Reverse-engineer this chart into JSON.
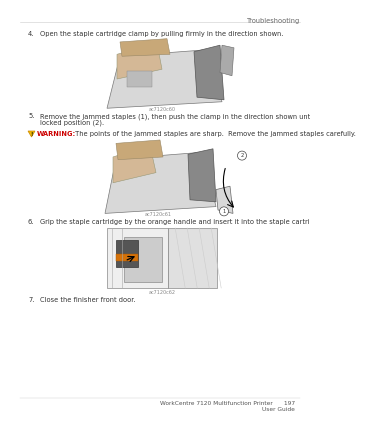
{
  "bg_color": "#ffffff",
  "header_text": "Troubleshooting",
  "header_fontsize": 4.8,
  "header_color": "#666666",
  "footer_line1": "WorkCentre 7120 Multifunction Printer      197",
  "footer_line2": "User Guide",
  "footer_fontsize": 4.2,
  "footer_color": "#555555",
  "step4_num": "4.",
  "step4_text": "Open the staple cartridge clamp by pulling firmly in the direction shown.",
  "step5_num": "5.",
  "step5_text_line1": "Remove the jammed staples (1), then push the clamp in the direction shown until it snaps into the",
  "step5_text_line2": "locked position (2).",
  "warning_label": "WARNING:",
  "warning_text": " The points of the jammed staples are sharp.  Remove the jammed staples carefully.",
  "step6_num": "6.",
  "step6_text": "Grip the staple cartridge by the orange handle and insert it into the staple cartridge unit until it clicks.",
  "step7_num": "7.",
  "step7_text": "Close the finisher front door.",
  "text_fontsize": 4.8,
  "text_color": "#333333",
  "warning_color": "#cc0000",
  "caption_fontsize": 3.5,
  "caption_color": "#888888",
  "img1_caption": "ac7120c60",
  "img2_caption": "ac7120c61",
  "img3_caption": "ac7120c62",
  "tan_color": "#d4b896",
  "tan_dark": "#c8a878",
  "gray_light": "#d8d8d8",
  "gray_mid": "#aaaaaa",
  "gray_dark": "#777777",
  "black_line": "#444444",
  "orange_color": "#d4720a"
}
